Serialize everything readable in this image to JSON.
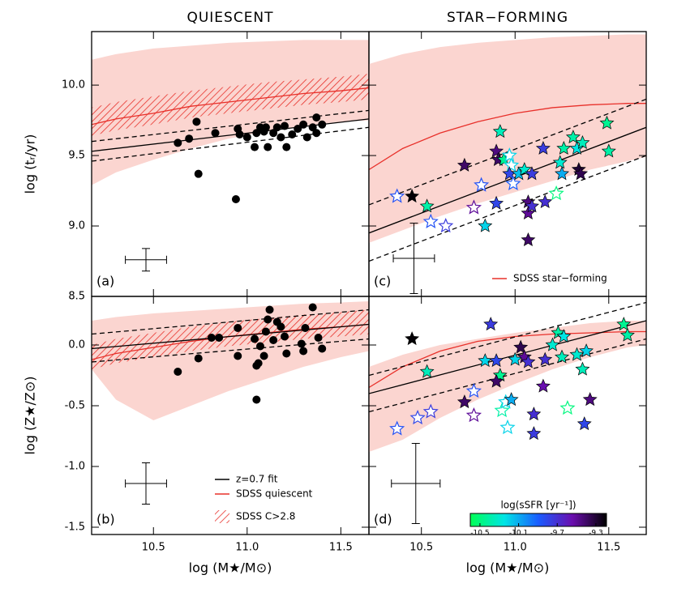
{
  "chart_data": [
    {
      "type": "scatter",
      "title": "QUIESCENT",
      "ylabel": "log (tᵣ/yr)",
      "panel_label": "(a)",
      "xlim": [
        10.17,
        11.65
      ],
      "ylim": [
        8.5,
        10.38
      ],
      "yticks": [
        8.5,
        {
          "value": 9,
          "label": "9.0"
        },
        9.5,
        {
          "value": 10,
          "label": "10.0"
        }
      ],
      "shade": {
        "color": "#fbd5d0",
        "x": [
          10.17,
          10.3,
          10.5,
          10.7,
          10.9,
          11.1,
          11.3,
          11.5,
          11.65
        ],
        "upper": [
          10.18,
          10.22,
          10.26,
          10.28,
          10.3,
          10.31,
          10.32,
          10.32,
          10.32
        ],
        "lower": [
          9.29,
          9.38,
          9.47,
          9.55,
          9.62,
          9.67,
          9.71,
          9.74,
          9.75
        ]
      },
      "hatch": {
        "color": "#e8302a",
        "x": [
          10.17,
          10.3,
          10.5,
          10.7,
          10.9,
          11.1,
          11.3,
          11.5,
          11.65
        ],
        "upper": [
          9.84,
          9.88,
          9.92,
          9.96,
          9.99,
          10.02,
          10.04,
          10.06,
          10.08
        ],
        "lower": [
          9.64,
          9.68,
          9.72,
          9.77,
          9.8,
          9.83,
          9.86,
          9.88,
          9.9
        ]
      },
      "lines": [
        {
          "color": "#e8302a",
          "dash": false,
          "x": [
            10.17,
            10.3,
            10.5,
            10.7,
            10.9,
            11.1,
            11.3,
            11.5,
            11.65
          ],
          "values": [
            9.72,
            9.76,
            9.8,
            9.85,
            9.88,
            9.91,
            9.94,
            9.96,
            9.98
          ]
        },
        {
          "color": "#000000",
          "dash": false,
          "x": [
            10.17,
            11.65
          ],
          "values": [
            9.53,
            9.76
          ]
        },
        {
          "color": "#000000",
          "dash": true,
          "x": [
            10.17,
            11.65
          ],
          "values": [
            9.46,
            9.7
          ]
        },
        {
          "color": "#000000",
          "dash": true,
          "x": [
            10.17,
            11.65
          ],
          "values": [
            9.6,
            9.82
          ]
        }
      ],
      "points": {
        "marker": "circle",
        "color": "#000000",
        "x": [
          10.63,
          10.74,
          10.69,
          10.73,
          10.83,
          10.95,
          10.96,
          10.94,
          11.0,
          11.04,
          11.05,
          11.07,
          11.09,
          11.1,
          11.11,
          11.14,
          11.16,
          11.18,
          11.2,
          11.21,
          11.24,
          11.27,
          11.3,
          11.32,
          11.35,
          11.37,
          11.37,
          11.4
        ],
        "values": [
          9.59,
          9.37,
          9.62,
          9.74,
          9.66,
          9.69,
          9.65,
          9.19,
          9.63,
          9.56,
          9.66,
          9.7,
          9.67,
          9.7,
          9.56,
          9.66,
          9.7,
          9.63,
          9.71,
          9.56,
          9.65,
          9.69,
          9.72,
          9.63,
          9.7,
          9.77,
          9.66,
          9.72
        ]
      },
      "error_bar": {
        "x": 10.46,
        "y": 8.76,
        "xerr": 0.11,
        "yerr": 0.08
      }
    },
    {
      "type": "scatter",
      "ylabel": "log (Z★/Z⊙)",
      "xlabel": "log (M★/M⊙)",
      "panel_label": "(b)",
      "xlim": [
        10.17,
        11.65
      ],
      "ylim": [
        -1.56,
        0.4
      ],
      "xticks": [
        10.5,
        {
          "value": 11,
          "label": "11.0"
        },
        11.5
      ],
      "yticks": [
        -1.5,
        {
          "value": -1,
          "label": "-1.0"
        },
        -0.5,
        {
          "value": 0,
          "label": "0.0"
        }
      ],
      "shade": {
        "color": "#fbd5d0",
        "x": [
          10.17,
          10.3,
          10.5,
          10.7,
          10.9,
          11.1,
          11.3,
          11.5,
          11.65
        ],
        "upper": [
          0.2,
          0.23,
          0.26,
          0.28,
          0.3,
          0.32,
          0.34,
          0.35,
          0.36
        ],
        "lower": [
          -0.2,
          -0.45,
          -0.62,
          -0.5,
          -0.38,
          -0.28,
          -0.18,
          -0.1,
          -0.05
        ]
      },
      "hatch": {
        "color": "#e8302a",
        "x": [
          10.17,
          10.3,
          10.5,
          10.7,
          10.9,
          11.1,
          11.3,
          11.5,
          11.65
        ],
        "upper": [
          0.0,
          0.05,
          0.1,
          0.15,
          0.19,
          0.22,
          0.25,
          0.27,
          0.29
        ],
        "lower": [
          -0.2,
          -0.15,
          -0.1,
          -0.05,
          -0.01,
          0.02,
          0.05,
          0.07,
          0.09
        ]
      },
      "lines": [
        {
          "color": "#e8302a",
          "dash": false,
          "x": [
            10.17,
            10.3,
            10.5,
            10.7,
            10.9,
            11.1,
            11.3,
            11.5,
            11.65
          ],
          "values": [
            -0.12,
            -0.07,
            -0.02,
            0.03,
            0.07,
            0.1,
            0.13,
            0.15,
            0.17
          ]
        },
        {
          "color": "#000000",
          "dash": false,
          "x": [
            10.17,
            11.65
          ],
          "values": [
            -0.03,
            0.17
          ]
        },
        {
          "color": "#000000",
          "dash": true,
          "x": [
            10.17,
            11.65
          ],
          "values": [
            -0.14,
            0.05
          ]
        },
        {
          "color": "#000000",
          "dash": true,
          "x": [
            10.17,
            11.65
          ],
          "values": [
            0.09,
            0.29
          ]
        }
      ],
      "points": {
        "marker": "circle",
        "color": "#000000",
        "x": [
          10.63,
          10.74,
          10.81,
          10.85,
          10.95,
          10.95,
          11.04,
          11.05,
          11.06,
          11.05,
          11.07,
          11.09,
          11.1,
          11.11,
          11.12,
          11.14,
          11.16,
          11.18,
          11.2,
          11.21,
          11.29,
          11.3,
          11.31,
          11.35,
          11.4,
          11.38
        ],
        "values": [
          -0.22,
          -0.11,
          0.06,
          0.06,
          0.14,
          -0.09,
          0.05,
          -0.17,
          -0.15,
          -0.45,
          -0.01,
          -0.09,
          0.11,
          0.21,
          0.29,
          0.04,
          0.19,
          0.15,
          0.07,
          -0.07,
          0.01,
          -0.05,
          0.14,
          0.31,
          -0.03,
          0.06
        ]
      },
      "error_bar": {
        "x": 10.46,
        "y": -1.14,
        "xerr": 0.11,
        "yerr": 0.17
      },
      "legend": {
        "corner": "lower right",
        "entries": [
          {
            "label": "z=0.7 fit",
            "style": "line",
            "color": "#000000"
          },
          {
            "label": "SDSS quiescent",
            "style": "line",
            "color": "#e8302a"
          },
          {
            "label": "SDSS C>2.8",
            "style": "hatch",
            "color": "#e8302a"
          }
        ]
      }
    },
    {
      "type": "scatter",
      "title": "STAR−FORMING",
      "panel_label": "(c)",
      "xlim": [
        10.22,
        11.7
      ],
      "ylim": [
        8.5,
        10.38
      ],
      "shade": {
        "color": "#fbd5d0",
        "x": [
          10.22,
          10.4,
          10.6,
          10.8,
          11.0,
          11.2,
          11.4,
          11.6,
          11.7
        ],
        "upper": [
          10.15,
          10.22,
          10.27,
          10.3,
          10.32,
          10.34,
          10.35,
          10.36,
          10.36
        ],
        "lower": [
          8.88,
          8.97,
          9.07,
          9.16,
          9.24,
          9.32,
          9.4,
          9.46,
          9.49
        ]
      },
      "lines": [
        {
          "color": "#e8302a",
          "dash": false,
          "x": [
            10.22,
            10.4,
            10.6,
            10.8,
            11.0,
            11.2,
            11.4,
            11.6,
            11.7
          ],
          "values": [
            9.4,
            9.55,
            9.66,
            9.74,
            9.8,
            9.84,
            9.86,
            9.87,
            9.87
          ]
        },
        {
          "color": "#000000",
          "dash": false,
          "x": [
            10.22,
            11.7
          ],
          "values": [
            8.95,
            9.7
          ]
        },
        {
          "color": "#000000",
          "dash": true,
          "x": [
            10.22,
            11.7
          ],
          "values": [
            8.75,
            9.5
          ]
        },
        {
          "color": "#000000",
          "dash": true,
          "x": [
            10.22,
            11.7
          ],
          "values": [
            9.15,
            9.9
          ]
        }
      ],
      "points": {
        "marker": "star",
        "x": [
          10.37,
          10.45,
          10.53,
          10.55,
          10.63,
          10.73,
          10.78,
          10.84,
          10.82,
          10.9,
          10.91,
          10.9,
          10.92,
          10.94,
          10.97,
          10.98,
          10.97,
          10.99,
          11.02,
          11.05,
          11.07,
          11.07,
          11.09,
          11.09,
          11.07,
          11.15,
          11.16,
          11.22,
          11.25,
          11.26,
          11.24,
          11.31,
          11.33,
          11.34,
          11.35,
          11.36,
          11.49,
          11.5
        ],
        "values": [
          9.21,
          9.21,
          9.14,
          9.03,
          9.0,
          9.43,
          9.13,
          9.0,
          9.29,
          9.53,
          9.47,
          9.16,
          9.67,
          9.47,
          9.5,
          9.43,
          9.37,
          9.3,
          9.37,
          9.4,
          9.17,
          9.09,
          9.14,
          9.37,
          8.9,
          9.55,
          9.17,
          9.23,
          9.37,
          9.55,
          9.45,
          9.63,
          9.55,
          9.4,
          9.37,
          9.59,
          9.73,
          9.53
        ],
        "ssfr": [
          -9.85,
          -9.2,
          -10.4,
          -9.85,
          -9.75,
          -9.4,
          -9.5,
          -10.2,
          -9.85,
          -9.45,
          -9.4,
          -9.8,
          -10.35,
          -10.45,
          -10.2,
          -10.2,
          -9.8,
          -9.9,
          -10.15,
          -10.3,
          -9.45,
          -9.5,
          -9.7,
          -9.75,
          -9.4,
          -9.75,
          -9.7,
          -10.5,
          -10.1,
          -10.4,
          -10.3,
          -10.4,
          -10.25,
          -9.3,
          -9.35,
          -10.35,
          -10.45,
          -10.4
        ],
        "filled": [
          false,
          true,
          true,
          false,
          false,
          true,
          false,
          true,
          false,
          true,
          true,
          true,
          true,
          true,
          false,
          false,
          true,
          false,
          true,
          true,
          true,
          true,
          true,
          true,
          true,
          true,
          true,
          false,
          true,
          true,
          true,
          true,
          true,
          true,
          true,
          true,
          true,
          true
        ]
      },
      "error_bar": {
        "x": 10.46,
        "y": 8.77,
        "xerr": 0.11,
        "yerr": 0.25
      },
      "legend": {
        "corner": "lower right",
        "entries": [
          {
            "label": "SDSS star−forming",
            "style": "line",
            "color": "#e8302a"
          }
        ]
      }
    },
    {
      "type": "scatter",
      "xlabel": "log (M★/M⊙)",
      "panel_label": "(d)",
      "xlim": [
        10.22,
        11.7
      ],
      "ylim": [
        -1.56,
        0.4
      ],
      "xticks": [
        10.5,
        {
          "value": 11,
          "label": "11.0"
        },
        11.5
      ],
      "shade": {
        "color": "#fbd5d0",
        "x": [
          10.22,
          10.4,
          10.6,
          10.8,
          11.0,
          11.2,
          11.4,
          11.6,
          11.7
        ],
        "upper": [
          -0.18,
          -0.08,
          0.0,
          0.05,
          0.1,
          0.14,
          0.18,
          0.2,
          0.2
        ],
        "lower": [
          -0.88,
          -0.78,
          -0.6,
          -0.45,
          -0.32,
          -0.2,
          -0.1,
          -0.02,
          0.0
        ]
      },
      "lines": [
        {
          "color": "#e8302a",
          "dash": false,
          "x": [
            10.22,
            10.4,
            10.6,
            10.8,
            11.0,
            11.2,
            11.4,
            11.6,
            11.7
          ],
          "values": [
            -0.35,
            -0.18,
            -0.05,
            0.03,
            0.07,
            0.09,
            0.1,
            0.11,
            0.11
          ]
        },
        {
          "color": "#000000",
          "dash": false,
          "x": [
            10.22,
            11.7
          ],
          "values": [
            -0.4,
            0.2
          ]
        },
        {
          "color": "#000000",
          "dash": true,
          "x": [
            10.22,
            11.7
          ],
          "values": [
            -0.55,
            0.05
          ]
        },
        {
          "color": "#000000",
          "dash": true,
          "x": [
            10.22,
            11.7
          ],
          "values": [
            -0.25,
            0.35
          ]
        }
      ],
      "points": {
        "marker": "star",
        "x": [
          10.45,
          10.37,
          10.48,
          10.55,
          10.53,
          10.73,
          10.78,
          10.78,
          10.84,
          10.9,
          10.92,
          10.93,
          10.95,
          10.96,
          10.98,
          10.87,
          10.9,
          11.0,
          11.03,
          11.05,
          11.07,
          11.1,
          11.1,
          11.15,
          11.16,
          11.2,
          11.23,
          11.26,
          11.25,
          11.28,
          11.33,
          11.36,
          11.38,
          11.37,
          11.4,
          11.58,
          11.6
        ],
        "values": [
          0.05,
          -0.69,
          -0.6,
          -0.55,
          -0.22,
          -0.47,
          -0.58,
          -0.38,
          -0.13,
          -0.13,
          -0.25,
          -0.54,
          -0.47,
          -0.68,
          -0.45,
          0.17,
          -0.3,
          -0.12,
          -0.02,
          -0.1,
          -0.14,
          -0.57,
          -0.73,
          -0.34,
          -0.12,
          0.0,
          0.1,
          0.07,
          -0.1,
          -0.52,
          -0.08,
          -0.2,
          -0.05,
          -0.65,
          -0.45,
          0.17,
          0.08
        ],
        "ssfr": [
          -9.2,
          -9.85,
          -9.8,
          -9.75,
          -10.35,
          -9.4,
          -9.5,
          -9.85,
          -10.2,
          -9.8,
          -10.45,
          -10.4,
          -10.2,
          -10.2,
          -10.1,
          -9.75,
          -9.4,
          -10.2,
          -9.35,
          -9.5,
          -9.7,
          -9.7,
          -9.75,
          -9.55,
          -9.7,
          -10.3,
          -10.4,
          -10.25,
          -10.35,
          -10.5,
          -10.3,
          -10.35,
          -10.2,
          -9.8,
          -9.45,
          -10.45,
          -10.4
        ],
        "filled": [
          true,
          false,
          false,
          false,
          true,
          true,
          false,
          false,
          true,
          true,
          true,
          false,
          false,
          false,
          true,
          true,
          true,
          true,
          true,
          true,
          true,
          true,
          true,
          true,
          true,
          true,
          true,
          true,
          true,
          false,
          true,
          true,
          true,
          true,
          true,
          true,
          true
        ]
      },
      "error_bar": {
        "x": 10.47,
        "y": -1.14,
        "xerr": 0.13,
        "yerr": 0.33
      },
      "colorbar": {
        "label": "log(sSFR [yr⁻¹])",
        "lim": [
          -10.6,
          -9.19
        ],
        "ticks": [
          -10.5,
          -10.1,
          -9.7,
          -9.3
        ],
        "colormap": [
          "#00ff55",
          "#00e5e5",
          "#1a5cff",
          "#6a0dad",
          "#000000"
        ]
      }
    }
  ]
}
